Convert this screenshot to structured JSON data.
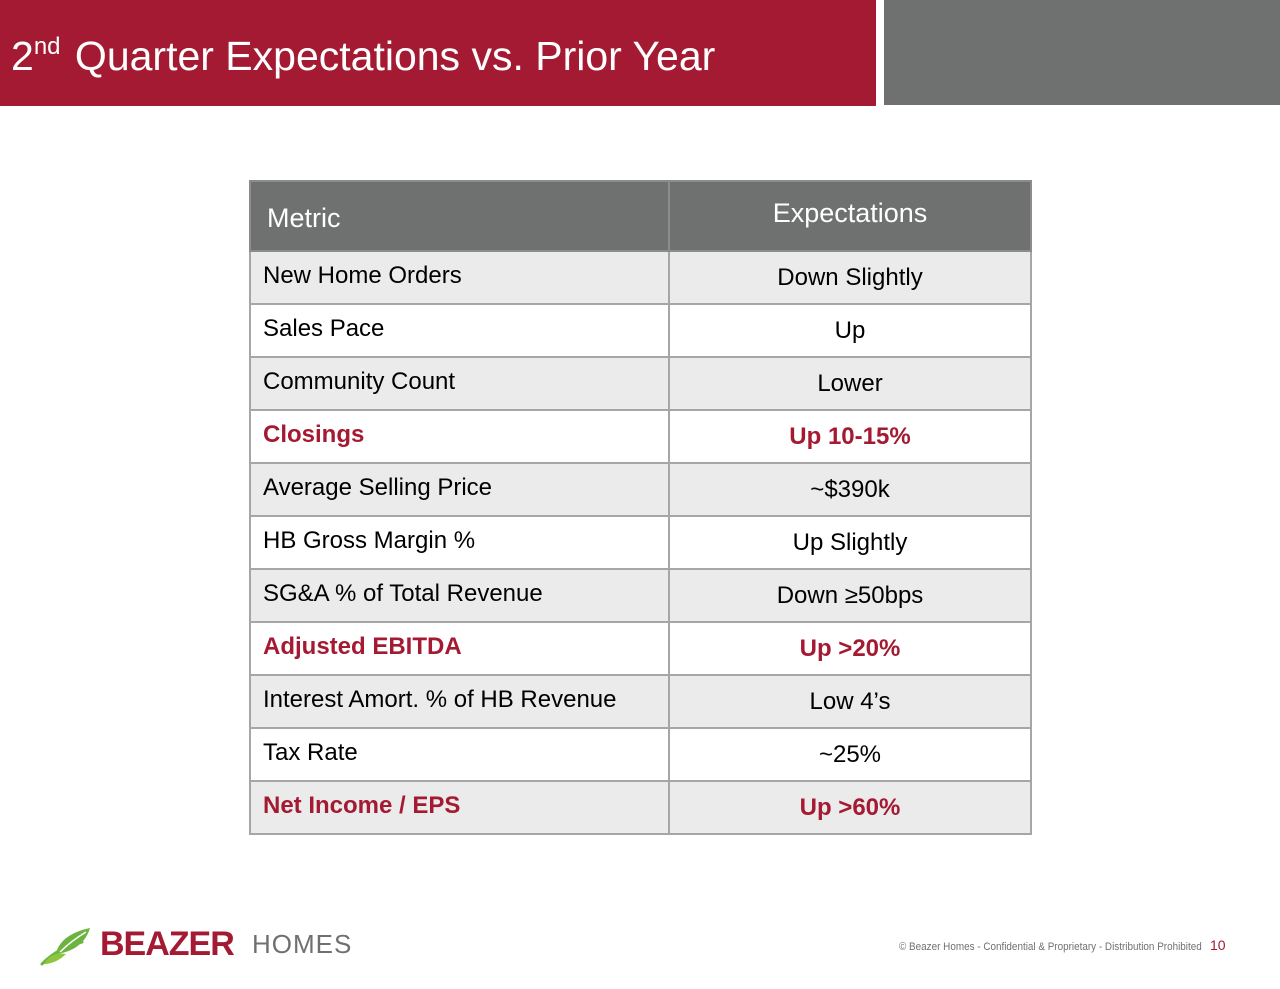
{
  "slide": {
    "title_ordinal": "2",
    "title_superscript": "nd",
    "title_rest": "Quarter Expectations vs. Prior Year",
    "page_number": "10",
    "footer_note": "© Beazer Homes - Confidential & Proprietary - Distribution Prohibited"
  },
  "logo": {
    "brand": "BEAZER",
    "suffix": "HOMES",
    "icon": "leaf-icon"
  },
  "table": {
    "headers": [
      "Metric",
      "Expectations"
    ],
    "rows": [
      {
        "metric": "New Home Orders",
        "expectation": "Down Slightly",
        "emphasis": false
      },
      {
        "metric": "Sales Pace",
        "expectation": "Up",
        "emphasis": false
      },
      {
        "metric": "Community Count",
        "expectation": "Lower",
        "emphasis": false
      },
      {
        "metric": "Closings",
        "expectation": "Up 10-15%",
        "emphasis": true
      },
      {
        "metric": "Average Selling Price",
        "expectation": "~$390k",
        "emphasis": false
      },
      {
        "metric": "HB Gross Margin %",
        "expectation": "Up Slightly",
        "emphasis": false
      },
      {
        "metric": "SG&A % of Total Revenue",
        "expectation": "Down ≥50bps",
        "emphasis": false
      },
      {
        "metric": "Adjusted EBITDA",
        "expectation": "Up >20%",
        "emphasis": true
      },
      {
        "metric": "Interest Amort. % of HB Revenue",
        "expectation": "Low 4’s",
        "emphasis": false
      },
      {
        "metric": "Tax Rate",
        "expectation": "~25%",
        "emphasis": false
      },
      {
        "metric": "Net Income / EPS",
        "expectation": "Up >60%",
        "emphasis": true
      }
    ]
  },
  "colors": {
    "brand_red": "#a31a32",
    "header_grey": "#6f7170",
    "row_shade": "#ebebeb",
    "leaf_green": "#6db33f"
  }
}
